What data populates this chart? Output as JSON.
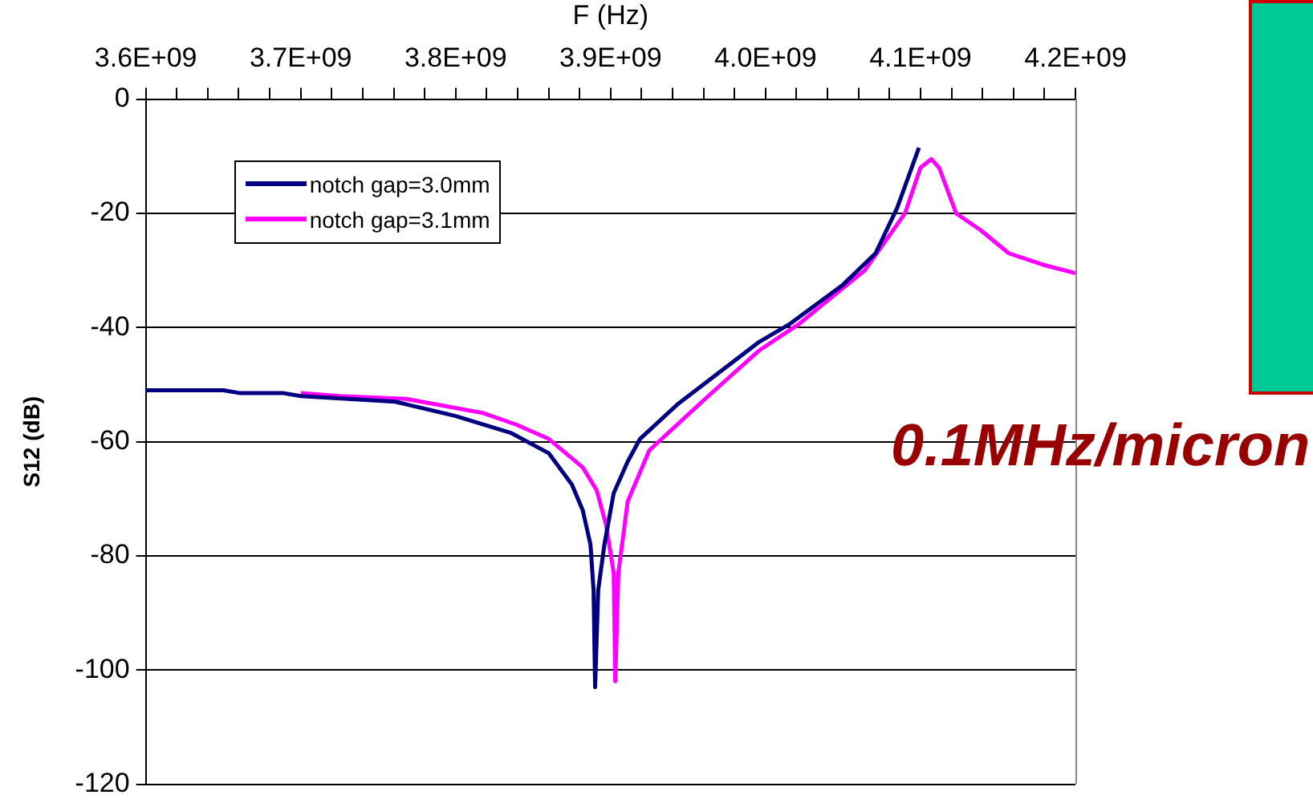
{
  "chart_data": {
    "type": "line",
    "xlabel": "F (Hz)",
    "ylabel": "S12 (dB)",
    "xlim": [
      3600000000.0,
      4200000000.0
    ],
    "xticks": [
      {
        "value": 3600000000.0,
        "label": "3.6E+09"
      },
      {
        "value": 3620000000.0,
        "label": null
      },
      {
        "value": 3640000000.0,
        "label": null
      },
      {
        "value": 3660000000.0,
        "label": null
      },
      {
        "value": 3680000000.0,
        "label": null
      },
      {
        "value": 3700000000.0,
        "label": "3.7E+09"
      },
      {
        "value": 3720000000.0,
        "label": null
      },
      {
        "value": 3740000000.0,
        "label": null
      },
      {
        "value": 3760000000.0,
        "label": null
      },
      {
        "value": 3780000000.0,
        "label": null
      },
      {
        "value": 3800000000.0,
        "label": "3.8E+09"
      },
      {
        "value": 3820000000.0,
        "label": null
      },
      {
        "value": 3840000000.0,
        "label": null
      },
      {
        "value": 3860000000.0,
        "label": null
      },
      {
        "value": 3880000000.0,
        "label": null
      },
      {
        "value": 3900000000.0,
        "label": "3.9E+09"
      },
      {
        "value": 3920000000.0,
        "label": null
      },
      {
        "value": 3940000000.0,
        "label": null
      },
      {
        "value": 3960000000.0,
        "label": null
      },
      {
        "value": 3980000000.0,
        "label": null
      },
      {
        "value": 4000000000.0,
        "label": "4.0E+09"
      },
      {
        "value": 4020000000.0,
        "label": null
      },
      {
        "value": 4040000000.0,
        "label": null
      },
      {
        "value": 4060000000.0,
        "label": null
      },
      {
        "value": 4080000000.0,
        "label": null
      },
      {
        "value": 4100000000.0,
        "label": "4.1E+09"
      },
      {
        "value": 4120000000.0,
        "label": null
      },
      {
        "value": 4140000000.0,
        "label": null
      },
      {
        "value": 4160000000.0,
        "label": null
      },
      {
        "value": 4180000000.0,
        "label": null
      },
      {
        "value": 4200000000.0,
        "label": "4.2E+09"
      }
    ],
    "ylim": [
      -120,
      0
    ],
    "yticks": [
      -120,
      -100,
      -80,
      -60,
      -40,
      -20,
      0
    ],
    "grid": "y",
    "legend": "top left",
    "marker": "none",
    "line_style": "solid",
    "annotations": [
      "0.1MHz/micron"
    ],
    "series": [
      {
        "name": "notch gap=3.0mm",
        "color": "#000080",
        "x": [
          3600000000.0,
          3650000000.0,
          3661000000.0,
          3689000000.0,
          3700000000.0,
          3761000000.0,
          3800000000.0,
          3836000000.0,
          3860000000.0,
          3875000000.0,
          3882000000.0,
          3887000000.0,
          3889000000.0,
          3890000000.0,
          3892000000.0,
          3896000000.0,
          3902000000.0,
          3911000000.0,
          3919000000.0,
          3943000000.0,
          3996000000.0,
          4015000000.0,
          4050000000.0,
          4071000000.0,
          4085000000.0,
          4099000000.0
        ],
        "values": [
          -51,
          -51,
          -51.5,
          -51.5,
          -52,
          -53,
          -55.5,
          -58.5,
          -62,
          -67.5,
          -72,
          -78,
          -86,
          -103,
          -86,
          -78,
          -69,
          -63.5,
          -59.5,
          -53.5,
          -42.5,
          -39.5,
          -32.5,
          -27,
          -19,
          -8.5
        ]
      },
      {
        "name": "notch gap=3.1mm",
        "color": "#ff00ff",
        "x": [
          3700000000.0,
          3725000000.0,
          3768000000.0,
          3818000000.0,
          3839000000.0,
          3860000000.0,
          3882000000.0,
          3891000000.0,
          3897000000.0,
          3902000000.0,
          3903000000.0,
          3905000000.0,
          3911000000.0,
          3925000000.0,
          3961000000.0,
          3996000000.0,
          4021000000.0,
          4064000000.0,
          4090000000.0,
          4100000000.0,
          4107000000.0,
          4112000000.0,
          4123000000.0,
          4139000000.0,
          4157000000.0,
          4179000000.0,
          4200000000.0
        ],
        "values": [
          -51.5,
          -52,
          -52.5,
          -55,
          -57,
          -59.5,
          -64.5,
          -68.5,
          -74.5,
          -83,
          -102,
          -83,
          -70.5,
          -61.5,
          -52.5,
          -44,
          -39.5,
          -30,
          -20,
          -12,
          -10.5,
          -12,
          -20,
          -23,
          -27,
          -29,
          -30.5
        ]
      }
    ]
  }
}
